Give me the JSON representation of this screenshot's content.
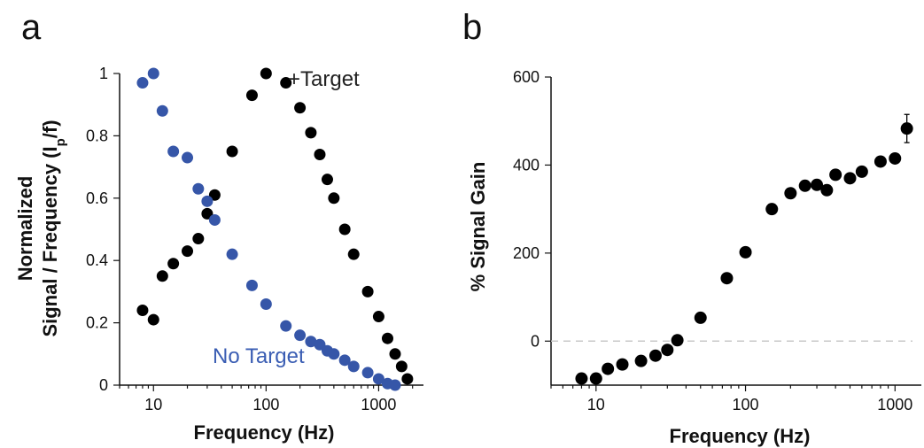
{
  "chart_data": [
    {
      "type": "scatter",
      "panel_label": "a",
      "xlabel": "Frequency (Hz)",
      "ylabel_line1": "Normalized",
      "ylabel_line2": "Signal / Frequency (I",
      "ylabel_sub": "p",
      "ylabel_tail": "/f)",
      "x_scale": "log",
      "xlim": [
        5,
        2500
      ],
      "ylim": [
        0,
        1
      ],
      "xticks": [
        10,
        100,
        1000
      ],
      "xtick_labels": [
        "10",
        "100",
        "1000"
      ],
      "yticks": [
        0,
        0.2,
        0.4,
        0.6,
        0.8,
        1
      ],
      "ytick_labels": [
        "0",
        "0.2",
        "0.4",
        "0.6",
        "0.8",
        "1"
      ],
      "grid": false,
      "series": [
        {
          "name": "+Target",
          "color": "#000000",
          "label_color": "#222222",
          "x": [
            8,
            10,
            12,
            15,
            20,
            25,
            30,
            35,
            50,
            75,
            100,
            150,
            200,
            250,
            300,
            350,
            400,
            500,
            600,
            800,
            1000,
            1200,
            1400,
            1600,
            1800
          ],
          "y": [
            0.24,
            0.21,
            0.35,
            0.39,
            0.43,
            0.47,
            0.55,
            0.61,
            0.75,
            0.93,
            1.0,
            0.97,
            0.89,
            0.81,
            0.74,
            0.66,
            0.6,
            0.5,
            0.42,
            0.3,
            0.22,
            0.15,
            0.1,
            0.06,
            0.02
          ]
        },
        {
          "name": "No Target",
          "color": "#3656a8",
          "label_color": "#3a5db3",
          "x": [
            8,
            10,
            12,
            15,
            20,
            25,
            30,
            35,
            50,
            75,
            100,
            150,
            200,
            250,
            300,
            350,
            400,
            500,
            600,
            800,
            1000,
            1200,
            1400
          ],
          "y": [
            0.97,
            1.0,
            0.88,
            0.75,
            0.73,
            0.63,
            0.59,
            0.53,
            0.42,
            0.32,
            0.26,
            0.19,
            0.16,
            0.14,
            0.13,
            0.11,
            0.1,
            0.08,
            0.06,
            0.04,
            0.02,
            0.005,
            0.0
          ]
        }
      ]
    },
    {
      "type": "scatter",
      "panel_label": "b",
      "xlabel": "Frequency (Hz)",
      "ylabel": "% Signal Gain",
      "x_scale": "log",
      "xlim": [
        5,
        1500
      ],
      "ylim": [
        -100,
        600
      ],
      "xticks": [
        10,
        100,
        1000
      ],
      "xtick_labels": [
        "10",
        "100",
        "1000"
      ],
      "yticks": [
        0,
        200,
        400,
        600
      ],
      "ytick_labels": [
        "0",
        "200",
        "400",
        "600"
      ],
      "zero_reference_line": true,
      "grid": false,
      "series": [
        {
          "color": "#000000",
          "x": [
            8,
            10,
            12,
            15,
            20,
            25,
            30,
            35,
            50,
            75,
            100,
            150,
            200,
            250,
            300,
            350,
            400,
            500,
            600,
            800,
            1000,
            1200
          ],
          "y": [
            -85,
            -85,
            -63,
            -53,
            -45,
            -33,
            -20,
            2,
            53,
            143,
            202,
            300,
            336,
            353,
            355,
            343,
            378,
            370,
            385,
            408,
            415,
            483
          ],
          "error": [
            0,
            0,
            0,
            0,
            0,
            0,
            0,
            0,
            0,
            0,
            0,
            0,
            0,
            0,
            0,
            0,
            0,
            0,
            0,
            0,
            0,
            32
          ]
        }
      ]
    }
  ]
}
